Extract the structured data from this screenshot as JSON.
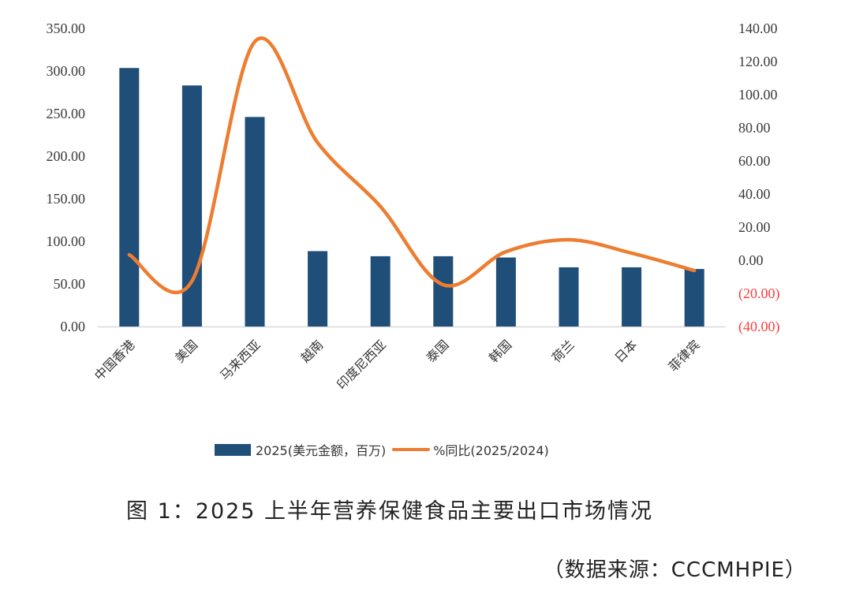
{
  "chart_data": {
    "type": "bar+line",
    "categories": [
      "中国香港",
      "美国",
      "马来西亚",
      "越南",
      "印度尼西亚",
      "泰国",
      "韩国",
      "荷兰",
      "日本",
      "菲律宾"
    ],
    "series": [
      {
        "name": "2025(美元金额，百万)",
        "type": "bar",
        "axis": "left",
        "color": "#1f4e79",
        "values": [
          303.5,
          283,
          246,
          88.5,
          82.5,
          82.5,
          81,
          69.5,
          69.5,
          67.5
        ]
      },
      {
        "name": "%同比(2025/2024)",
        "type": "line",
        "axis": "right",
        "smooth": true,
        "color": "#ed7d31",
        "values": [
          3.3,
          -12.5,
          132,
          71,
          32.5,
          -14.8,
          5.2,
          12.4,
          4.3,
          -6.2
        ]
      }
    ],
    "left_axis": {
      "ylim": [
        0,
        350
      ],
      "ticks": [
        "0.00",
        "50.00",
        "100.00",
        "150.00",
        "200.00",
        "250.00",
        "300.00",
        "350.00"
      ],
      "tick_values": [
        0,
        50,
        100,
        150,
        200,
        250,
        300,
        350
      ]
    },
    "right_axis": {
      "ylim": [
        -40,
        140
      ],
      "ticks": [
        "(40.00)",
        "(20.00)",
        "0.00",
        "20.00",
        "40.00",
        "60.00",
        "80.00",
        "100.00",
        "120.00",
        "140.00"
      ],
      "tick_values": [
        -40,
        -20,
        0,
        20,
        40,
        60,
        80,
        100,
        120,
        140
      ],
      "negative_color": "#ff3b3b"
    },
    "legend_position": "bottom",
    "grid": false,
    "title": "图 1：2025 上半年营养保健食品主要出口市场情况",
    "source": "（数据来源：CCCMHPIE）"
  }
}
